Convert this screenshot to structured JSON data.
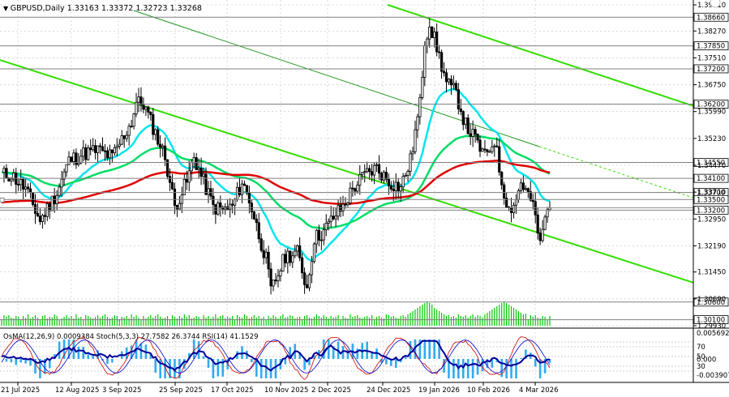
{
  "header": {
    "symbol_timeframe": "GBPUSD,Daily",
    "ohlc": "1.33163 1.33372 1.32723 1.33268"
  },
  "sub_header": "OsMA(12,26,9) 0.0009384  Stoch(5,3,3) 27.7582 26.3744  RSI(14) 41.1529",
  "colors": {
    "background": "#ffffff",
    "grid": "#c0c0c0",
    "candle": "#000000",
    "ma_short": "#00e5ee",
    "ma_mid": "#00dd66",
    "ma_long": "#e00000",
    "trend": "#33dd00",
    "histogram": "#00c800",
    "osma": "#33aaee",
    "rsi": "#000099",
    "stoch_main": "#cc0000",
    "stoch_signal": "#0000cc"
  },
  "chart_data": {
    "type": "candlestick",
    "y_axis": {
      "range": [
        1.2993,
        1.3901
      ],
      "ticks": [
        "1.39010",
        "1.38270",
        "1.37510",
        "1.36750",
        "1.35990",
        "1.35230",
        "1.34470",
        "1.33710",
        "1.32950",
        "1.32190",
        "1.31450",
        "1.30690",
        "1.29930"
      ]
    },
    "level_labels": [
      {
        "text": "1.38660",
        "value": 1.3866
      },
      {
        "text": "1.37850",
        "value": 1.3785
      },
      {
        "text": "1.37200",
        "value": 1.372
      },
      {
        "text": "1.36200",
        "value": 1.362
      },
      {
        "text": "1.34550",
        "value": 1.3455
      },
      {
        "text": "1.34100",
        "value": 1.341
      },
      {
        "text": "1.33700",
        "value": 1.337
      },
      {
        "text": "1.33500",
        "value": 1.335
      },
      {
        "text": "1.33200",
        "value": 1.332
      },
      {
        "text": "1.30600",
        "value": 1.306
      },
      {
        "text": "1.30100",
        "value": 1.301
      }
    ],
    "x_labels": [
      "21 Jul 2025",
      "12 Aug 2025",
      "3 Sep 2025",
      "25 Sep 2025",
      "17 Oct 2025",
      "10 Nov 2025",
      "2 Dec 2025",
      "24 Dec 2025",
      "19 Jan 2026",
      "10 Feb 2026",
      "4 Mar 2026"
    ],
    "close_path": [
      [
        0,
        1.342
      ],
      [
        4,
        1.342
      ],
      [
        10,
        1.338
      ],
      [
        16,
        1.329
      ],
      [
        23,
        1.337
      ],
      [
        28,
        1.346
      ],
      [
        34,
        1.348
      ],
      [
        40,
        1.349
      ],
      [
        46,
        1.347
      ],
      [
        54,
        1.357
      ],
      [
        56,
        1.3625
      ],
      [
        59,
        1.362
      ],
      [
        63,
        1.3555
      ],
      [
        68,
        1.347
      ],
      [
        72,
        1.333
      ],
      [
        77,
        1.34
      ],
      [
        80,
        1.347
      ],
      [
        84,
        1.34
      ],
      [
        88,
        1.333
      ],
      [
        92,
        1.332
      ],
      [
        96,
        1.333
      ],
      [
        100,
        1.34
      ],
      [
        103,
        1.335
      ],
      [
        107,
        1.325
      ],
      [
        110,
        1.318
      ],
      [
        112,
        1.309
      ],
      [
        115,
        1.314
      ],
      [
        118,
        1.319
      ],
      [
        123,
        1.32
      ],
      [
        127,
        1.31
      ],
      [
        130,
        1.324
      ],
      [
        134,
        1.326
      ],
      [
        138,
        1.33
      ],
      [
        142,
        1.333
      ],
      [
        146,
        1.338
      ],
      [
        151,
        1.342
      ],
      [
        156,
        1.344
      ],
      [
        161,
        1.34
      ],
      [
        166,
        1.3385
      ],
      [
        170,
        1.346
      ],
      [
        174,
        1.362
      ],
      [
        176,
        1.38
      ],
      [
        178,
        1.385
      ],
      [
        181,
        1.378
      ],
      [
        185,
        1.368
      ],
      [
        189,
        1.365
      ],
      [
        193,
        1.356
      ],
      [
        197,
        1.352
      ],
      [
        201,
        1.347
      ],
      [
        205,
        1.352
      ],
      [
        208,
        1.34
      ],
      [
        211,
        1.332
      ],
      [
        214,
        1.335
      ],
      [
        216,
        1.34
      ],
      [
        220,
        1.335
      ],
      [
        222,
        1.33
      ],
      [
        224,
        1.322
      ],
      [
        226,
        1.33
      ],
      [
        228,
        1.3326
      ]
    ],
    "histogram": [
      8,
      13,
      11,
      13,
      10,
      9,
      12,
      11,
      8,
      12,
      10,
      14,
      9,
      11,
      13,
      10,
      8,
      12,
      13,
      9,
      11,
      10,
      14,
      12,
      8,
      9,
      11,
      13,
      10,
      12,
      9,
      14,
      10,
      11,
      8,
      13,
      12,
      10,
      9,
      11,
      13,
      10,
      12,
      14,
      11,
      9,
      10,
      13,
      12,
      8,
      11,
      10,
      12,
      9,
      14,
      11,
      13,
      10,
      8,
      12,
      9,
      11,
      13,
      10,
      12,
      14,
      11,
      9,
      10,
      12,
      8,
      13,
      11,
      9,
      12,
      10,
      14,
      11,
      13,
      9,
      10,
      12,
      11,
      8,
      13,
      10,
      12,
      9,
      11,
      14,
      10,
      12,
      13,
      9,
      11,
      10,
      12,
      8,
      13,
      11,
      10,
      14,
      12,
      9,
      11,
      13,
      10,
      12,
      9,
      11,
      8,
      12,
      10,
      13,
      11,
      9,
      12,
      14,
      10,
      11,
      13,
      12,
      9,
      10,
      11,
      8,
      12,
      13,
      10,
      9,
      11,
      14,
      12,
      10,
      13,
      11,
      9,
      12,
      10,
      11,
      13,
      8,
      12,
      10,
      9,
      14,
      11,
      12,
      13,
      10,
      9,
      11,
      12,
      10,
      13,
      8,
      11,
      12,
      10,
      9,
      14,
      13,
      11,
      12,
      10,
      9,
      12,
      13,
      11,
      14,
      16,
      18,
      20,
      22,
      24,
      26,
      28,
      30,
      28,
      26,
      22,
      20,
      18,
      16,
      14,
      12,
      13,
      11,
      12,
      10,
      14,
      12,
      11,
      13,
      10,
      12,
      14,
      11,
      13,
      12,
      10,
      14,
      16,
      18,
      20,
      22,
      24,
      26,
      28,
      30,
      28,
      26,
      24,
      22,
      20,
      18,
      16,
      14,
      15
    ]
  }
}
